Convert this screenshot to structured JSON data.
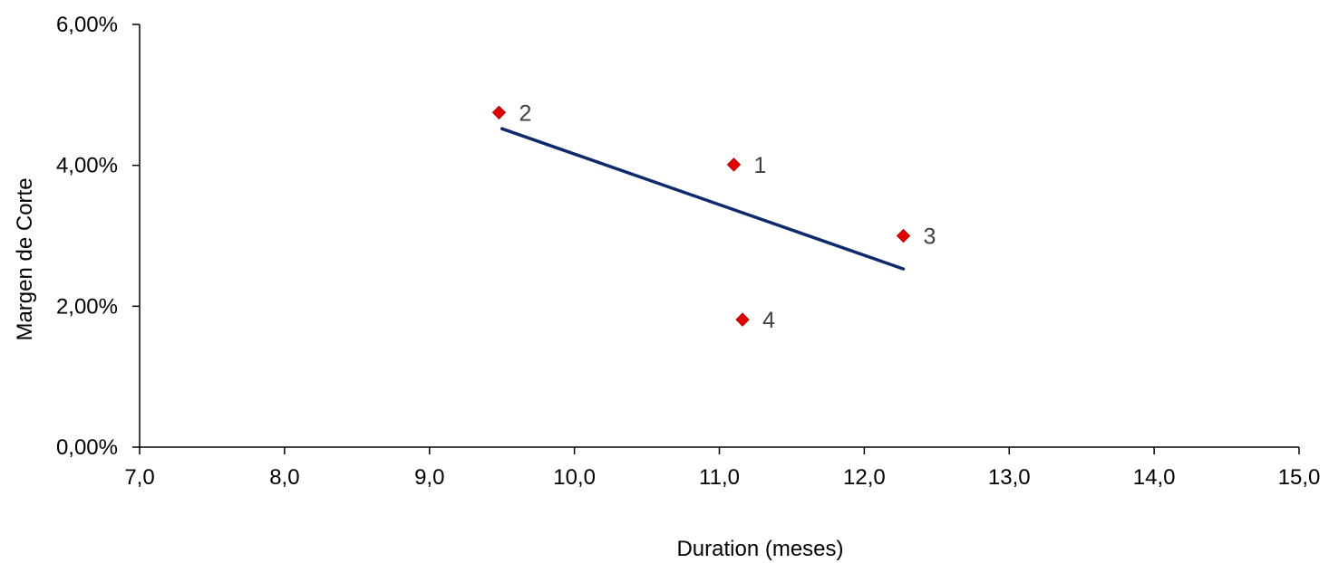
{
  "chart_data": {
    "type": "scatter",
    "title": "",
    "xlabel": "Duration (meses)",
    "ylabel": "Margen de Corte",
    "xlim": [
      7.0,
      15.0
    ],
    "ylim": [
      0.0,
      0.06
    ],
    "x_ticks": [
      7.0,
      8.0,
      9.0,
      10.0,
      11.0,
      12.0,
      13.0,
      14.0,
      15.0
    ],
    "x_tick_labels": [
      "7,0",
      "8,0",
      "9,0",
      "10,0",
      "11,0",
      "12,0",
      "13,0",
      "14,0",
      "15,0"
    ],
    "y_ticks": [
      0.0,
      0.02,
      0.04,
      0.06
    ],
    "y_tick_labels": [
      "0,00%",
      "2,00%",
      "4,00%",
      "6,00%"
    ],
    "grid": false,
    "legend": "none",
    "series": [
      {
        "type": "scatter",
        "marker": "diamond",
        "color": "#e00000",
        "points": [
          {
            "label": "1",
            "x": 11.1,
            "y": 0.0401
          },
          {
            "label": "2",
            "x": 9.48,
            "y": 0.0475
          },
          {
            "label": "3",
            "x": 12.27,
            "y": 0.03
          },
          {
            "label": "4",
            "x": 11.16,
            "y": 0.0181
          }
        ]
      },
      {
        "type": "line",
        "style": "trendline",
        "color": "#0f2a6b",
        "points": [
          {
            "x": 9.5,
            "y": 0.0452
          },
          {
            "x": 12.27,
            "y": 0.0253
          }
        ]
      }
    ]
  }
}
